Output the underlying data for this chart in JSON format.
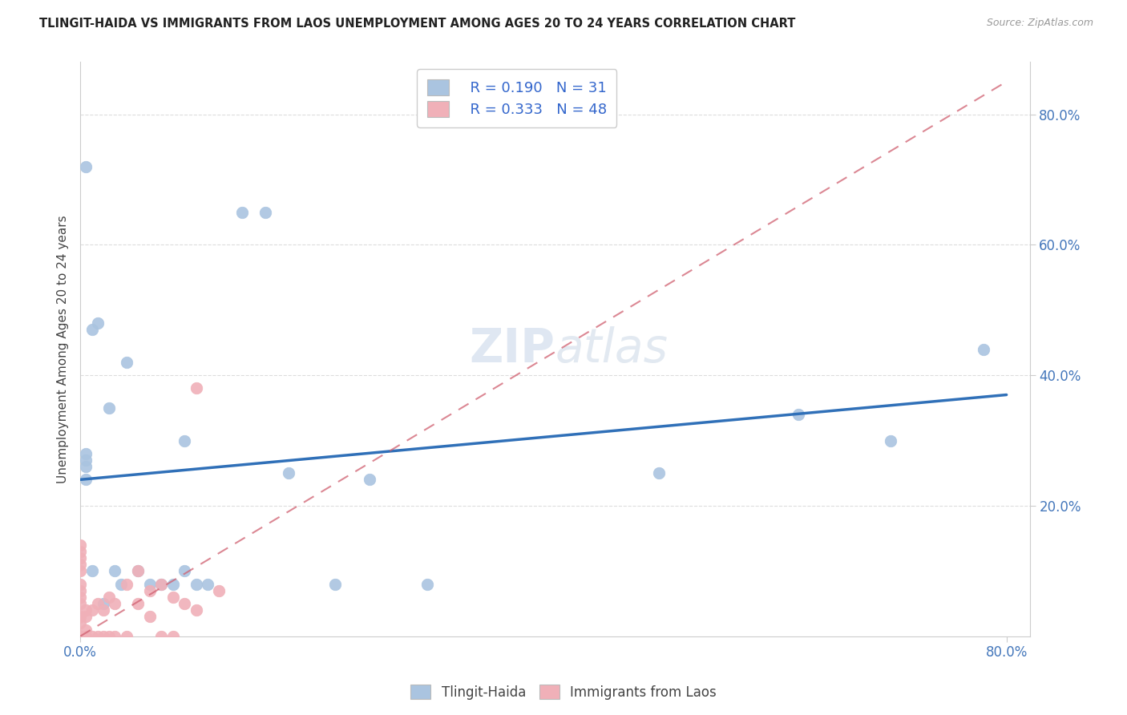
{
  "title": "TLINGIT-HAIDA VS IMMIGRANTS FROM LAOS UNEMPLOYMENT AMONG AGES 20 TO 24 YEARS CORRELATION CHART",
  "source": "Source: ZipAtlas.com",
  "ylabel": "Unemployment Among Ages 20 to 24 years",
  "tlingit_R": 0.19,
  "tlingit_N": 31,
  "laos_R": 0.333,
  "laos_N": 48,
  "tlingit_color": "#aac4e0",
  "tlingit_line_color": "#3070b8",
  "laos_color": "#f0b0b8",
  "laos_line_color": "#d06070",
  "xlim": [
    0.0,
    0.82
  ],
  "ylim": [
    0.0,
    0.88
  ],
  "xtick_positions": [
    0.0,
    0.8
  ],
  "xtick_labels": [
    "0.0%",
    "80.0%"
  ],
  "ytick_positions": [
    0.2,
    0.4,
    0.6,
    0.8
  ],
  "ytick_labels": [
    "20.0%",
    "40.0%",
    "60.0%",
    "80.0%"
  ],
  "tlingit_line_x0": 0.0,
  "tlingit_line_y0": 0.24,
  "tlingit_line_x1": 0.8,
  "tlingit_line_y1": 0.37,
  "laos_line_x0": 0.0,
  "laos_line_y0": 0.0,
  "laos_line_x1": 0.8,
  "laos_line_y1": 0.85,
  "watermark_text": "ZIPatlas",
  "background_color": "#ffffff",
  "grid_color": "#dddddd",
  "tlingit_points_x": [
    0.005,
    0.005,
    0.005,
    0.005,
    0.005,
    0.01,
    0.01,
    0.015,
    0.02,
    0.025,
    0.03,
    0.035,
    0.04,
    0.05,
    0.06,
    0.07,
    0.08,
    0.09,
    0.09,
    0.1,
    0.11,
    0.14,
    0.16,
    0.18,
    0.22,
    0.25,
    0.3,
    0.5,
    0.62,
    0.7,
    0.78
  ],
  "tlingit_points_y": [
    0.72,
    0.28,
    0.27,
    0.26,
    0.24,
    0.47,
    0.1,
    0.48,
    0.05,
    0.35,
    0.1,
    0.08,
    0.42,
    0.1,
    0.08,
    0.08,
    0.08,
    0.1,
    0.3,
    0.08,
    0.08,
    0.65,
    0.65,
    0.25,
    0.08,
    0.24,
    0.08,
    0.25,
    0.34,
    0.3,
    0.44
  ],
  "laos_points_x": [
    0.0,
    0.0,
    0.0,
    0.0,
    0.0,
    0.0,
    0.0,
    0.0,
    0.0,
    0.0,
    0.0,
    0.0,
    0.0,
    0.0,
    0.0,
    0.0,
    0.0,
    0.0,
    0.0,
    0.005,
    0.005,
    0.005,
    0.005,
    0.005,
    0.01,
    0.01,
    0.015,
    0.015,
    0.02,
    0.02,
    0.025,
    0.025,
    0.03,
    0.03,
    0.04,
    0.04,
    0.05,
    0.05,
    0.06,
    0.06,
    0.07,
    0.07,
    0.08,
    0.08,
    0.09,
    0.1,
    0.1,
    0.12
  ],
  "laos_points_y": [
    0.0,
    0.0,
    0.0,
    0.0,
    0.0,
    0.0,
    0.0,
    0.0,
    0.02,
    0.03,
    0.05,
    0.06,
    0.07,
    0.08,
    0.1,
    0.11,
    0.12,
    0.13,
    0.14,
    0.0,
    0.0,
    0.01,
    0.03,
    0.04,
    0.0,
    0.04,
    0.0,
    0.05,
    0.0,
    0.04,
    0.0,
    0.06,
    0.0,
    0.05,
    0.0,
    0.08,
    0.05,
    0.1,
    0.03,
    0.07,
    0.0,
    0.08,
    0.0,
    0.06,
    0.05,
    0.04,
    0.38,
    0.07
  ]
}
